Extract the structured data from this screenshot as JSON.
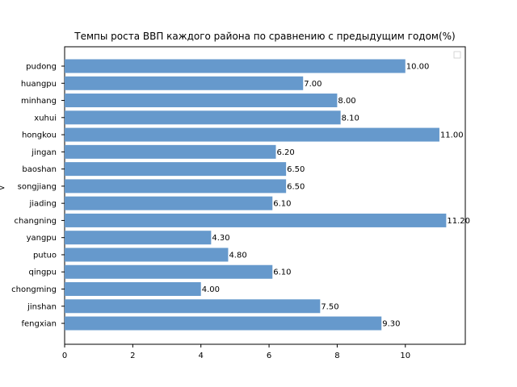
{
  "chart_data": {
    "type": "bar",
    "orientation": "horizontal",
    "title": "Темпы роста ВВП каждого района по сравнению с предыдущим годом(%)",
    "xlabel": "",
    "ylabel": "",
    "categories": [
      "pudong",
      "huangpu",
      "minhang",
      "xuhui",
      "hongkou",
      "jingan",
      "baoshan",
      "songjiang",
      "jiading",
      "changning",
      "yangpu",
      "putuo",
      "qingpu",
      "chongming",
      "jinshan",
      "fengxian"
    ],
    "values": [
      10.0,
      7.0,
      8.0,
      8.1,
      11.0,
      6.2,
      6.5,
      6.5,
      6.1,
      11.2,
      4.3,
      4.8,
      6.1,
      4.0,
      7.5,
      9.3
    ],
    "value_labels": [
      "10.00",
      "7.00",
      "8.00",
      "8.10",
      "11.00",
      "6.20",
      "6.50",
      "6.50",
      "6.10",
      "11.20",
      "4.30",
      "4.80",
      "6.10",
      "4.00",
      "7.50",
      "9.30"
    ],
    "xticks": [
      "0",
      "2",
      "4",
      "6",
      "8",
      "10"
    ],
    "xlim": [
      0,
      11.76
    ],
    "grid": false,
    "legend": "top-right",
    "bar_color": "#6699cc"
  }
}
